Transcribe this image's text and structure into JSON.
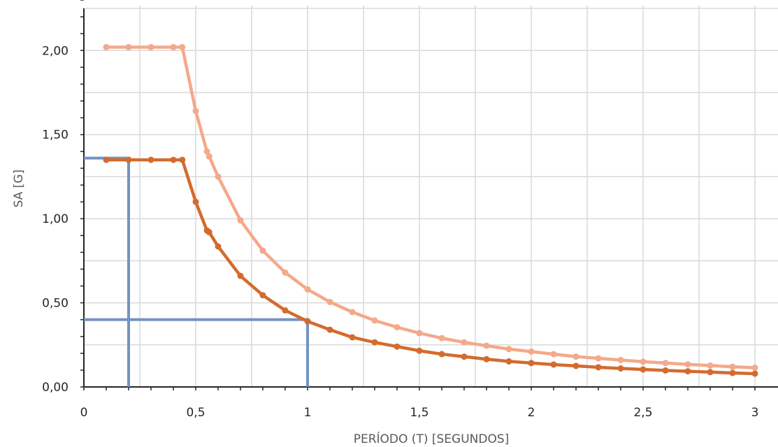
{
  "chart_data": {
    "type": "line",
    "title": "",
    "xlabel": "PERÍODO (T) [SEGUNDOS]",
    "ylabel": "SA [G]",
    "xlim": [
      0,
      3
    ],
    "ylim": [
      0,
      2.3
    ],
    "x_ticks": [
      {
        "value": 0,
        "label": "0"
      },
      {
        "value": 0.5,
        "label": "0,5"
      },
      {
        "value": 1,
        "label": "1"
      },
      {
        "value": 1.5,
        "label": "1,5"
      },
      {
        "value": 2,
        "label": "2"
      },
      {
        "value": 2.5,
        "label": "2,5"
      },
      {
        "value": 3,
        "label": "3"
      }
    ],
    "y_ticks": [
      {
        "value": 0,
        "label": "0,00"
      },
      {
        "value": 0.5,
        "label": "0,50"
      },
      {
        "value": 1,
        "label": "1,00"
      },
      {
        "value": 1.5,
        "label": "1,50"
      },
      {
        "value": 2,
        "label": "2,00"
      }
    ],
    "grid": true,
    "legend": "none",
    "series": [
      {
        "color": "#f4a98a",
        "x": [
          0.1,
          0.2,
          0.3,
          0.4,
          0.44,
          0.5,
          0.55,
          0.56,
          0.6,
          0.7,
          0.8,
          0.9,
          1.0,
          1.1,
          1.2,
          1.3,
          1.4,
          1.5,
          1.6,
          1.7,
          1.8,
          1.9,
          2.0,
          2.1,
          2.2,
          2.3,
          2.4,
          2.5,
          2.6,
          2.7,
          2.8,
          2.9,
          3.0
        ],
        "y": [
          2.02,
          2.02,
          2.02,
          2.02,
          2.02,
          1.64,
          1.4,
          1.37,
          1.25,
          0.99,
          0.81,
          0.68,
          0.58,
          0.505,
          0.445,
          0.395,
          0.355,
          0.32,
          0.29,
          0.265,
          0.245,
          0.225,
          0.21,
          0.195,
          0.18,
          0.17,
          0.16,
          0.15,
          0.142,
          0.134,
          0.127,
          0.12,
          0.114
        ]
      },
      {
        "color": "#d36b2e",
        "x": [
          0.1,
          0.2,
          0.3,
          0.4,
          0.44,
          0.5,
          0.55,
          0.56,
          0.6,
          0.7,
          0.8,
          0.9,
          1.0,
          1.1,
          1.2,
          1.3,
          1.4,
          1.5,
          1.6,
          1.7,
          1.8,
          1.9,
          2.0,
          2.1,
          2.2,
          2.3,
          2.4,
          2.5,
          2.6,
          2.7,
          2.8,
          2.9,
          3.0
        ],
        "y": [
          1.35,
          1.35,
          1.35,
          1.35,
          1.35,
          1.1,
          0.93,
          0.92,
          0.835,
          0.66,
          0.545,
          0.455,
          0.39,
          0.34,
          0.295,
          0.265,
          0.24,
          0.215,
          0.195,
          0.18,
          0.165,
          0.152,
          0.142,
          0.133,
          0.125,
          0.117,
          0.11,
          0.104,
          0.098,
          0.093,
          0.088,
          0.083,
          0.079
        ]
      }
    ],
    "annotations": [
      {
        "color": "#7393c2",
        "points": [
          [
            0,
            1.36
          ],
          [
            0.2,
            1.36
          ],
          [
            0.2,
            0
          ]
        ]
      },
      {
        "color": "#7393c2",
        "points": [
          [
            0,
            0.4
          ],
          [
            1.0,
            0.4
          ],
          [
            1.0,
            0
          ]
        ]
      }
    ]
  }
}
